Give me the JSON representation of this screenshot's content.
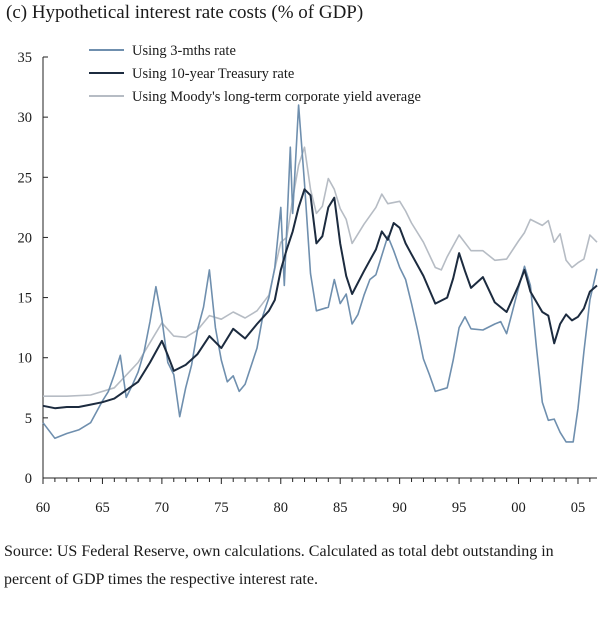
{
  "chart_data": {
    "type": "line",
    "title": "(c) Hypothetical interest rate costs (% of GDP)",
    "xlabel": "",
    "ylabel": "",
    "xlim": [
      1960,
      2006.6
    ],
    "ylim": [
      0,
      35
    ],
    "x_ticks": [
      1960,
      1965,
      1970,
      1975,
      1980,
      1985,
      1990,
      1995,
      2000,
      2005
    ],
    "x_tick_labels": [
      "60",
      "65",
      "70",
      "75",
      "80",
      "85",
      "90",
      "95",
      "00",
      "05"
    ],
    "y_ticks": [
      0,
      5,
      10,
      15,
      20,
      25,
      30,
      35
    ],
    "y_tick_labels": [
      "0",
      "5",
      "10",
      "15",
      "20",
      "25",
      "30",
      "35"
    ],
    "grid": false,
    "legend_position": "top-left",
    "series": [
      {
        "name": "Using 3-mths rate",
        "color": "#6f8fae",
        "points": [
          [
            1960,
            4.6
          ],
          [
            1961,
            3.3
          ],
          [
            1962,
            3.7
          ],
          [
            1963,
            4.0
          ],
          [
            1964,
            4.6
          ],
          [
            1965,
            6.4
          ],
          [
            1965.5,
            7.2
          ],
          [
            1966,
            8.6
          ],
          [
            1966.5,
            10.2
          ],
          [
            1967,
            6.7
          ],
          [
            1967.5,
            7.7
          ],
          [
            1968,
            8.8
          ],
          [
            1968.5,
            10.5
          ],
          [
            1969,
            13.0
          ],
          [
            1969.5,
            15.9
          ],
          [
            1970,
            13.2
          ],
          [
            1970.5,
            9.6
          ],
          [
            1971,
            8.6
          ],
          [
            1971.5,
            5.1
          ],
          [
            1972,
            7.5
          ],
          [
            1972.5,
            9.4
          ],
          [
            1973,
            12.3
          ],
          [
            1973.5,
            14.2
          ],
          [
            1974,
            17.3
          ],
          [
            1974.5,
            12.5
          ],
          [
            1975,
            9.8
          ],
          [
            1975.5,
            8.0
          ],
          [
            1976,
            8.5
          ],
          [
            1976.5,
            7.2
          ],
          [
            1977,
            7.8
          ],
          [
            1978,
            10.8
          ],
          [
            1978.5,
            13.5
          ],
          [
            1979,
            15.0
          ],
          [
            1979.5,
            17.5
          ],
          [
            1980,
            22.5
          ],
          [
            1980.3,
            16.0
          ],
          [
            1980.8,
            27.5
          ],
          [
            1981,
            22.0
          ],
          [
            1981.5,
            31.0
          ],
          [
            1982,
            24.5
          ],
          [
            1982.5,
            17.0
          ],
          [
            1983,
            13.9
          ],
          [
            1984,
            14.2
          ],
          [
            1984.5,
            16.5
          ],
          [
            1985,
            14.5
          ],
          [
            1985.5,
            15.3
          ],
          [
            1986,
            12.8
          ],
          [
            1986.5,
            13.6
          ],
          [
            1987,
            15.2
          ],
          [
            1987.5,
            16.5
          ],
          [
            1988,
            16.9
          ],
          [
            1988.5,
            18.5
          ],
          [
            1989,
            20.1
          ],
          [
            1989.5,
            18.9
          ],
          [
            1990,
            17.5
          ],
          [
            1990.5,
            16.5
          ],
          [
            1991,
            14.5
          ],
          [
            1991.5,
            12.3
          ],
          [
            1992,
            9.9
          ],
          [
            1992.5,
            8.6
          ],
          [
            1993,
            7.2
          ],
          [
            1994,
            7.5
          ],
          [
            1994.5,
            9.8
          ],
          [
            1995,
            12.5
          ],
          [
            1995.5,
            13.4
          ],
          [
            1996,
            12.4
          ],
          [
            1997,
            12.3
          ],
          [
            1998,
            12.8
          ],
          [
            1998.5,
            13.0
          ],
          [
            1999,
            12.0
          ],
          [
            1999.5,
            13.9
          ],
          [
            2000,
            15.8
          ],
          [
            2000.5,
            17.6
          ],
          [
            2001,
            16.0
          ],
          [
            2001.5,
            10.9
          ],
          [
            2002,
            6.3
          ],
          [
            2002.5,
            4.8
          ],
          [
            2003,
            4.9
          ],
          [
            2003.5,
            3.8
          ],
          [
            2004,
            3.0
          ],
          [
            2004.6,
            3.0
          ],
          [
            2005,
            5.8
          ],
          [
            2005.5,
            10.5
          ],
          [
            2006,
            14.8
          ],
          [
            2006.6,
            17.4
          ]
        ]
      },
      {
        "name": "Using 10-year Treasury rate",
        "color": "#1c2b3f",
        "points": [
          [
            1960,
            6.0
          ],
          [
            1961,
            5.8
          ],
          [
            1962,
            5.9
          ],
          [
            1963,
            5.9
          ],
          [
            1964,
            6.1
          ],
          [
            1965,
            6.3
          ],
          [
            1966,
            6.6
          ],
          [
            1967,
            7.3
          ],
          [
            1968,
            8.0
          ],
          [
            1969,
            9.6
          ],
          [
            1970,
            11.4
          ],
          [
            1970.5,
            10.2
          ],
          [
            1971,
            8.9
          ],
          [
            1972,
            9.4
          ],
          [
            1973,
            10.3
          ],
          [
            1974,
            11.8
          ],
          [
            1975,
            10.8
          ],
          [
            1976,
            12.4
          ],
          [
            1977,
            11.6
          ],
          [
            1978,
            12.8
          ],
          [
            1979,
            13.9
          ],
          [
            1979.5,
            14.8
          ],
          [
            1980,
            17.3
          ],
          [
            1980.5,
            19.0
          ],
          [
            1981,
            20.5
          ],
          [
            1981.5,
            22.5
          ],
          [
            1982,
            24.0
          ],
          [
            1982.5,
            23.5
          ],
          [
            1983,
            19.5
          ],
          [
            1983.5,
            20.1
          ],
          [
            1984,
            22.5
          ],
          [
            1984.5,
            23.3
          ],
          [
            1985,
            19.5
          ],
          [
            1985.5,
            16.8
          ],
          [
            1986,
            15.3
          ],
          [
            1987,
            17.2
          ],
          [
            1987.5,
            18.1
          ],
          [
            1988,
            19.0
          ],
          [
            1988.5,
            20.5
          ],
          [
            1989,
            19.8
          ],
          [
            1989.5,
            21.2
          ],
          [
            1990,
            20.8
          ],
          [
            1990.5,
            19.5
          ],
          [
            1991,
            18.6
          ],
          [
            1992,
            16.8
          ],
          [
            1993,
            14.5
          ],
          [
            1994,
            15.0
          ],
          [
            1994.5,
            16.6
          ],
          [
            1995,
            18.7
          ],
          [
            1995.5,
            17.2
          ],
          [
            1996,
            15.8
          ],
          [
            1997,
            16.7
          ],
          [
            1998,
            14.6
          ],
          [
            1999,
            13.8
          ],
          [
            2000,
            16.0
          ],
          [
            2000.5,
            17.3
          ],
          [
            2001,
            15.5
          ],
          [
            2002,
            13.8
          ],
          [
            2002.5,
            13.5
          ],
          [
            2003,
            11.2
          ],
          [
            2003.5,
            12.8
          ],
          [
            2004,
            13.6
          ],
          [
            2004.5,
            13.1
          ],
          [
            2005,
            13.4
          ],
          [
            2005.5,
            14.1
          ],
          [
            2006,
            15.5
          ],
          [
            2006.6,
            16.0
          ]
        ]
      },
      {
        "name": "Using Moody's long-term corporate yield average",
        "color": "#b6bcc4",
        "points": [
          [
            1960,
            6.8
          ],
          [
            1962,
            6.8
          ],
          [
            1964,
            6.9
          ],
          [
            1966,
            7.5
          ],
          [
            1968,
            9.6
          ],
          [
            1970,
            12.9
          ],
          [
            1971,
            11.8
          ],
          [
            1972,
            11.7
          ],
          [
            1973,
            12.3
          ],
          [
            1974,
            13.5
          ],
          [
            1975,
            13.2
          ],
          [
            1976,
            13.8
          ],
          [
            1977,
            13.3
          ],
          [
            1978,
            13.9
          ],
          [
            1979,
            15.2
          ],
          [
            1980,
            19.6
          ],
          [
            1980.5,
            20.0
          ],
          [
            1981,
            23.2
          ],
          [
            1981.5,
            26.0
          ],
          [
            1982,
            27.5
          ],
          [
            1982.5,
            24.0
          ],
          [
            1983,
            22.0
          ],
          [
            1983.5,
            22.6
          ],
          [
            1984,
            24.9
          ],
          [
            1984.5,
            24.0
          ],
          [
            1985,
            22.4
          ],
          [
            1985.5,
            21.5
          ],
          [
            1986,
            19.5
          ],
          [
            1987,
            21.1
          ],
          [
            1988,
            22.5
          ],
          [
            1988.5,
            23.6
          ],
          [
            1989,
            22.8
          ],
          [
            1990,
            23.0
          ],
          [
            1990.5,
            22.2
          ],
          [
            1991,
            21.2
          ],
          [
            1992,
            19.6
          ],
          [
            1993,
            17.5
          ],
          [
            1993.5,
            17.3
          ],
          [
            1994,
            18.4
          ],
          [
            1995,
            20.2
          ],
          [
            1996,
            18.9
          ],
          [
            1997,
            18.9
          ],
          [
            1998,
            18.1
          ],
          [
            1999,
            18.2
          ],
          [
            2000,
            19.7
          ],
          [
            2000.5,
            20.4
          ],
          [
            2001,
            21.5
          ],
          [
            2002,
            21.0
          ],
          [
            2002.5,
            21.4
          ],
          [
            2003,
            19.6
          ],
          [
            2003.5,
            20.3
          ],
          [
            2004,
            18.1
          ],
          [
            2004.5,
            17.5
          ],
          [
            2005,
            17.9
          ],
          [
            2005.5,
            18.2
          ],
          [
            2006,
            20.2
          ],
          [
            2006.6,
            19.6
          ]
        ]
      }
    ]
  },
  "source_note": "Source: US Federal Reserve, own calculations. Calculated as total debt outstanding in percent of GDP times the respective interest rate."
}
